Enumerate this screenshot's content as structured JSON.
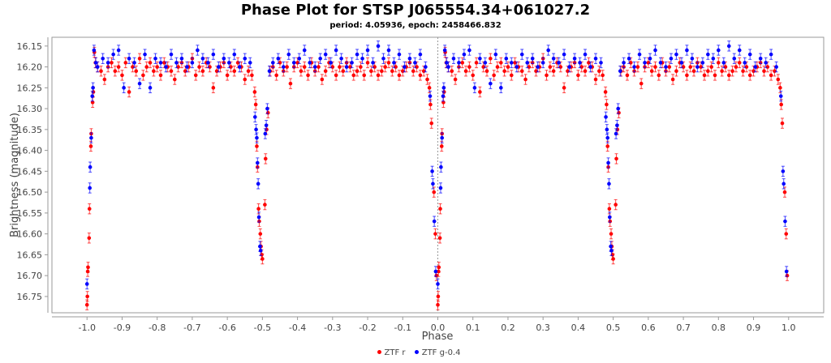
{
  "chart_data": {
    "type": "scatter",
    "title": "Phase Plot for STSP J065554.34+061027.2",
    "subtitle": "period: 4.05936, epoch: 2458466.832",
    "xlabel": "Phase",
    "ylabel": "Brightness (magnitude)",
    "xlim": [
      -1.1,
      1.1
    ],
    "ylim": [
      16.789,
      16.129
    ],
    "y_inverted": true,
    "grid": false,
    "legend_placement": "bottom",
    "x_ticks": [
      "-1.0",
      "-0.9",
      "-0.8",
      "-0.7",
      "-0.6",
      "-0.5",
      "-0.4",
      "-0.3",
      "-0.2",
      "-0.1",
      "0.0",
      "0.1",
      "0.2",
      "0.3",
      "0.4",
      "0.5",
      "0.6",
      "0.7",
      "0.8",
      "0.9",
      "1.0"
    ],
    "y_ticks": [
      "16.15",
      "16.20",
      "16.25",
      "16.30",
      "16.35",
      "16.40",
      "16.45",
      "16.50",
      "16.55",
      "16.60",
      "16.65",
      "16.70",
      "16.75"
    ],
    "series": [
      {
        "name": "ZTF r",
        "color": "#ff0000",
        "error": 0.012,
        "points": [
          [
            0.0,
            16.77
          ],
          [
            0.001,
            16.75
          ],
          [
            0.002,
            16.69
          ],
          [
            0.003,
            16.68
          ],
          [
            0.006,
            16.61
          ],
          [
            0.007,
            16.54
          ],
          [
            0.011,
            16.39
          ],
          [
            0.012,
            16.36
          ],
          [
            0.016,
            16.285
          ],
          [
            0.018,
            16.26
          ],
          [
            0.021,
            16.165
          ],
          [
            0.024,
            16.19
          ],
          [
            0.03,
            16.2
          ],
          [
            0.04,
            16.21
          ],
          [
            0.05,
            16.23
          ],
          [
            0.06,
            16.2
          ],
          [
            0.07,
            16.19
          ],
          [
            0.08,
            16.21
          ],
          [
            0.09,
            16.2
          ],
          [
            0.1,
            16.22
          ],
          [
            0.11,
            16.19
          ],
          [
            0.12,
            16.26
          ],
          [
            0.13,
            16.2
          ],
          [
            0.14,
            16.21
          ],
          [
            0.15,
            16.18
          ],
          [
            0.16,
            16.22
          ],
          [
            0.17,
            16.2
          ],
          [
            0.18,
            16.19
          ],
          [
            0.19,
            16.21
          ],
          [
            0.2,
            16.2
          ],
          [
            0.21,
            16.22
          ],
          [
            0.22,
            16.19
          ],
          [
            0.23,
            16.2
          ],
          [
            0.24,
            16.21
          ],
          [
            0.25,
            16.23
          ],
          [
            0.26,
            16.2
          ],
          [
            0.27,
            16.19
          ],
          [
            0.28,
            16.21
          ],
          [
            0.29,
            16.2
          ],
          [
            0.3,
            16.18
          ],
          [
            0.31,
            16.22
          ],
          [
            0.32,
            16.2
          ],
          [
            0.33,
            16.21
          ],
          [
            0.34,
            16.19
          ],
          [
            0.35,
            16.2
          ],
          [
            0.36,
            16.25
          ],
          [
            0.37,
            16.21
          ],
          [
            0.38,
            16.2
          ],
          [
            0.39,
            16.19
          ],
          [
            0.4,
            16.22
          ],
          [
            0.41,
            16.2
          ],
          [
            0.42,
            16.21
          ],
          [
            0.43,
            16.19
          ],
          [
            0.44,
            16.2
          ],
          [
            0.45,
            16.23
          ],
          [
            0.46,
            16.21
          ],
          [
            0.47,
            16.22
          ],
          [
            0.478,
            16.26
          ],
          [
            0.481,
            16.29
          ],
          [
            0.484,
            16.39
          ],
          [
            0.486,
            16.44
          ],
          [
            0.489,
            16.54
          ],
          [
            0.491,
            16.57
          ],
          [
            0.494,
            16.6
          ],
          [
            0.496,
            16.63
          ],
          [
            0.498,
            16.65
          ],
          [
            0.5,
            16.66
          ],
          [
            0.507,
            16.53
          ],
          [
            0.509,
            16.42
          ],
          [
            0.512,
            16.35
          ],
          [
            0.516,
            16.31
          ],
          [
            0.522,
            16.21
          ],
          [
            0.53,
            16.2
          ],
          [
            0.54,
            16.22
          ],
          [
            0.55,
            16.19
          ],
          [
            0.56,
            16.21
          ],
          [
            0.57,
            16.2
          ],
          [
            0.58,
            16.24
          ],
          [
            0.59,
            16.2
          ],
          [
            0.6,
            16.19
          ],
          [
            0.61,
            16.21
          ],
          [
            0.62,
            16.2
          ],
          [
            0.63,
            16.22
          ],
          [
            0.64,
            16.19
          ],
          [
            0.65,
            16.21
          ],
          [
            0.66,
            16.2
          ],
          [
            0.67,
            16.23
          ],
          [
            0.68,
            16.21
          ],
          [
            0.69,
            16.19
          ],
          [
            0.7,
            16.2
          ],
          [
            0.71,
            16.22
          ],
          [
            0.72,
            16.2
          ],
          [
            0.73,
            16.21
          ],
          [
            0.74,
            16.19
          ],
          [
            0.75,
            16.2
          ],
          [
            0.76,
            16.22
          ],
          [
            0.77,
            16.21
          ],
          [
            0.78,
            16.2
          ],
          [
            0.79,
            16.22
          ],
          [
            0.8,
            16.19
          ],
          [
            0.81,
            16.21
          ],
          [
            0.82,
            16.2
          ],
          [
            0.83,
            16.22
          ],
          [
            0.84,
            16.21
          ],
          [
            0.85,
            16.2
          ],
          [
            0.86,
            16.19
          ],
          [
            0.87,
            16.21
          ],
          [
            0.88,
            16.2
          ],
          [
            0.89,
            16.22
          ],
          [
            0.9,
            16.21
          ],
          [
            0.91,
            16.2
          ],
          [
            0.92,
            16.19
          ],
          [
            0.93,
            16.21
          ],
          [
            0.94,
            16.2
          ],
          [
            0.95,
            16.22
          ],
          [
            0.96,
            16.21
          ],
          [
            0.97,
            16.23
          ],
          [
            0.976,
            16.25
          ],
          [
            0.979,
            16.29
          ],
          [
            0.982,
            16.335
          ],
          [
            0.989,
            16.5
          ],
          [
            0.993,
            16.6
          ],
          [
            0.996,
            16.7
          ]
        ]
      },
      {
        "name": "ZTF g-0.4",
        "color": "#0000ff",
        "error": 0.012,
        "points": [
          [
            0.0,
            16.72
          ],
          [
            0.008,
            16.49
          ],
          [
            0.009,
            16.44
          ],
          [
            0.012,
            16.37
          ],
          [
            0.015,
            16.27
          ],
          [
            0.017,
            16.25
          ],
          [
            0.02,
            16.16
          ],
          [
            0.025,
            16.19
          ],
          [
            0.03,
            16.2
          ],
          [
            0.045,
            16.18
          ],
          [
            0.06,
            16.19
          ],
          [
            0.075,
            16.17
          ],
          [
            0.09,
            16.16
          ],
          [
            0.105,
            16.25
          ],
          [
            0.12,
            16.18
          ],
          [
            0.135,
            16.19
          ],
          [
            0.15,
            16.24
          ],
          [
            0.165,
            16.17
          ],
          [
            0.18,
            16.25
          ],
          [
            0.195,
            16.18
          ],
          [
            0.21,
            16.19
          ],
          [
            0.225,
            16.2
          ],
          [
            0.24,
            16.17
          ],
          [
            0.255,
            16.19
          ],
          [
            0.27,
            16.18
          ],
          [
            0.285,
            16.2
          ],
          [
            0.3,
            16.19
          ],
          [
            0.315,
            16.16
          ],
          [
            0.33,
            16.18
          ],
          [
            0.345,
            16.19
          ],
          [
            0.36,
            16.17
          ],
          [
            0.375,
            16.2
          ],
          [
            0.39,
            16.18
          ],
          [
            0.405,
            16.19
          ],
          [
            0.42,
            16.17
          ],
          [
            0.435,
            16.2
          ],
          [
            0.45,
            16.18
          ],
          [
            0.465,
            16.19
          ],
          [
            0.479,
            16.32
          ],
          [
            0.482,
            16.35
          ],
          [
            0.484,
            16.37
          ],
          [
            0.486,
            16.43
          ],
          [
            0.488,
            16.48
          ],
          [
            0.49,
            16.56
          ],
          [
            0.493,
            16.63
          ],
          [
            0.495,
            16.64
          ],
          [
            0.508,
            16.36
          ],
          [
            0.511,
            16.34
          ],
          [
            0.514,
            16.3
          ],
          [
            0.52,
            16.21
          ],
          [
            0.53,
            16.19
          ],
          [
            0.545,
            16.18
          ],
          [
            0.56,
            16.2
          ],
          [
            0.575,
            16.17
          ],
          [
            0.59,
            16.19
          ],
          [
            0.605,
            16.18
          ],
          [
            0.62,
            16.16
          ],
          [
            0.635,
            16.19
          ],
          [
            0.65,
            16.2
          ],
          [
            0.665,
            16.18
          ],
          [
            0.68,
            16.17
          ],
          [
            0.695,
            16.19
          ],
          [
            0.71,
            16.16
          ],
          [
            0.725,
            16.18
          ],
          [
            0.74,
            16.2
          ],
          [
            0.755,
            16.19
          ],
          [
            0.77,
            16.17
          ],
          [
            0.785,
            16.18
          ],
          [
            0.8,
            16.16
          ],
          [
            0.815,
            16.19
          ],
          [
            0.83,
            16.15
          ],
          [
            0.845,
            16.18
          ],
          [
            0.86,
            16.16
          ],
          [
            0.875,
            16.19
          ],
          [
            0.89,
            16.17
          ],
          [
            0.905,
            16.2
          ],
          [
            0.92,
            16.18
          ],
          [
            0.935,
            16.19
          ],
          [
            0.95,
            16.17
          ],
          [
            0.965,
            16.2
          ],
          [
            0.978,
            16.27
          ],
          [
            0.984,
            16.45
          ],
          [
            0.986,
            16.48
          ],
          [
            0.99,
            16.57
          ],
          [
            0.994,
            16.69
          ]
        ]
      }
    ]
  }
}
